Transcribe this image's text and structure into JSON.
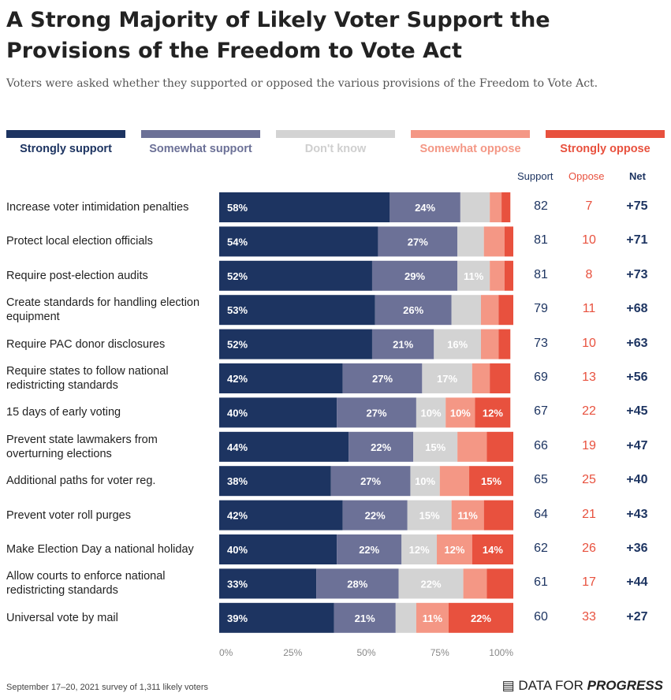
{
  "title": "A Strong Majority of Likely Voter Support the Provisions of the Freedom to Vote Act",
  "subtitle": "Voters were asked whether they supported or opposed the various provisions of the Freedom to Vote Act.",
  "footer": "September 17–20, 2021 survey of 1,311 likely voters",
  "logo": {
    "prefix": "DATA FOR",
    "brand": "PROGRESS"
  },
  "colors": {
    "strongly_support": "#1d3461",
    "somewhat_support": "#6c7197",
    "dont_know": "#d3d3d3",
    "somewhat_oppose": "#f49785",
    "strongly_oppose": "#e8513e",
    "support_text": "#1d3461",
    "oppose_text": "#e8513e"
  },
  "chart_data": {
    "type": "bar",
    "orientation": "horizontal",
    "stacked": true,
    "xlim": [
      0,
      100
    ],
    "xticks": [
      "0%",
      "25%",
      "50%",
      "75%",
      "100%"
    ],
    "columns": {
      "support": "Support",
      "oppose": "Oppose",
      "net": "Net"
    },
    "series": [
      {
        "name": "Strongly support",
        "key": "strongly_support"
      },
      {
        "name": "Somewhat support",
        "key": "somewhat_support"
      },
      {
        "name": "Don't know",
        "key": "dont_know"
      },
      {
        "name": "Somewhat oppose",
        "key": "somewhat_oppose"
      },
      {
        "name": "Strongly oppose",
        "key": "strongly_oppose"
      }
    ],
    "rows": [
      {
        "label": "Increase voter intimidation penalties",
        "values": [
          58,
          24,
          10,
          4,
          3
        ],
        "labels": [
          "58%",
          "24%",
          "",
          "",
          ""
        ],
        "support": "82",
        "oppose": "7",
        "net": "+75"
      },
      {
        "label": "Protect local election officials",
        "values": [
          54,
          27,
          9,
          7,
          3
        ],
        "labels": [
          "54%",
          "27%",
          "",
          "",
          ""
        ],
        "support": "81",
        "oppose": "10",
        "net": "+71"
      },
      {
        "label": "Require post-election audits",
        "values": [
          52,
          29,
          11,
          5,
          3
        ],
        "labels": [
          "52%",
          "29%",
          "11%",
          "",
          ""
        ],
        "support": "81",
        "oppose": "8",
        "net": "+73"
      },
      {
        "label": "Create standards for handling election equipment",
        "values": [
          53,
          26,
          10,
          6,
          5
        ],
        "labels": [
          "53%",
          "26%",
          "",
          "",
          ""
        ],
        "support": "79",
        "oppose": "11",
        "net": "+68"
      },
      {
        "label": "Require PAC donor disclosures",
        "values": [
          52,
          21,
          16,
          6,
          4
        ],
        "labels": [
          "52%",
          "21%",
          "16%",
          "",
          ""
        ],
        "support": "73",
        "oppose": "10",
        "net": "+63"
      },
      {
        "label": "Require states to follow national redistricting standards",
        "values": [
          42,
          27,
          17,
          6,
          7
        ],
        "labels": [
          "42%",
          "27%",
          "17%",
          "",
          ""
        ],
        "support": "69",
        "oppose": "13",
        "net": "+56"
      },
      {
        "label": "15 days of early voting",
        "values": [
          40,
          27,
          10,
          10,
          12
        ],
        "labels": [
          "40%",
          "27%",
          "10%",
          "10%",
          "12%"
        ],
        "support": "67",
        "oppose": "22",
        "net": "+45"
      },
      {
        "label": "Prevent state lawmakers from overturning elections",
        "values": [
          44,
          22,
          15,
          10,
          9
        ],
        "labels": [
          "44%",
          "22%",
          "15%",
          "",
          ""
        ],
        "support": "66",
        "oppose": "19",
        "net": "+47"
      },
      {
        "label": "Additional paths for voter reg.",
        "values": [
          38,
          27,
          10,
          10,
          15
        ],
        "labels": [
          "38%",
          "27%",
          "10%",
          "",
          "15%"
        ],
        "support": "65",
        "oppose": "25",
        "net": "+40"
      },
      {
        "label": "Prevent voter roll purges",
        "values": [
          42,
          22,
          15,
          11,
          10
        ],
        "labels": [
          "42%",
          "22%",
          "15%",
          "11%",
          ""
        ],
        "support": "64",
        "oppose": "21",
        "net": "+43"
      },
      {
        "label": "Make Election Day a national holiday",
        "values": [
          40,
          22,
          12,
          12,
          14
        ],
        "labels": [
          "40%",
          "22%",
          "12%",
          "12%",
          "14%"
        ],
        "support": "62",
        "oppose": "26",
        "net": "+36"
      },
      {
        "label": "Allow courts to enforce national redistricting standards",
        "values": [
          33,
          28,
          22,
          8,
          9
        ],
        "labels": [
          "33%",
          "28%",
          "22%",
          "",
          ""
        ],
        "support": "61",
        "oppose": "17",
        "net": "+44"
      },
      {
        "label": "Universal vote by mail",
        "values": [
          39,
          21,
          7,
          11,
          22
        ],
        "labels": [
          "39%",
          "21%",
          "",
          "11%",
          "22%"
        ],
        "support": "60",
        "oppose": "33",
        "net": "+27"
      }
    ]
  }
}
